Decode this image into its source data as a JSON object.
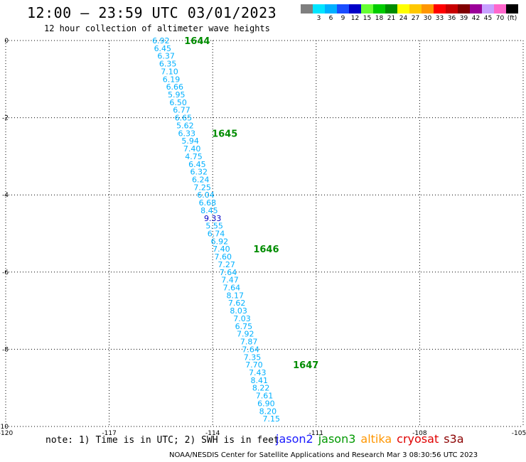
{
  "title": "12:00 – 23:59 UTC 03/01/2023",
  "subtitle": "12 hour collection of altimeter wave heights",
  "colorbar": {
    "unit_label": "(ft)",
    "entries": [
      {
        "color": "#7f7f7f",
        "label": ""
      },
      {
        "color": "#00e5ff",
        "label": "3"
      },
      {
        "color": "#00b0ff",
        "label": "6"
      },
      {
        "color": "#1a4dff",
        "label": "9"
      },
      {
        "color": "#0000c8",
        "label": "12"
      },
      {
        "color": "#66ff33",
        "label": "15"
      },
      {
        "color": "#00cc00",
        "label": "18"
      },
      {
        "color": "#008c00",
        "label": "21"
      },
      {
        "color": "#ffff00",
        "label": "24"
      },
      {
        "color": "#ffc800",
        "label": "27"
      },
      {
        "color": "#ff9600",
        "label": "30"
      },
      {
        "color": "#ff0000",
        "label": "33"
      },
      {
        "color": "#c80000",
        "label": "36"
      },
      {
        "color": "#800000",
        "label": "39"
      },
      {
        "color": "#9b0099",
        "label": "42"
      },
      {
        "color": "#c8a0ff",
        "label": "45"
      },
      {
        "color": "#ff66cc",
        "label": "70"
      },
      {
        "color": "#000000",
        "label": "(ft)"
      }
    ]
  },
  "map": {
    "lon_range": [
      -120,
      -105
    ],
    "lat_range": [
      -10,
      0
    ],
    "x_ticks": [
      "-120",
      "-117",
      "-114",
      "-111",
      "-108",
      "-105"
    ],
    "y_ticks": [
      "0",
      "-2",
      "-4",
      "-6",
      "-8",
      "-10"
    ],
    "track_color": "#00b0ff",
    "highlight_color": "#0000c8",
    "time_color": "#008c00"
  },
  "chart_data": {
    "type": "scatter",
    "title": "12:00 – 23:59 UTC 03/01/2023",
    "subtitle": "12 hour collection of altimeter wave heights",
    "xlabel": "",
    "ylabel": "",
    "xlim": [
      -120,
      -105
    ],
    "ylim": [
      -10,
      0
    ],
    "grid": true,
    "unit": "ft",
    "points": [
      {
        "lon": -115.5,
        "lat": 0.0,
        "swh": "6.92"
      },
      {
        "lon": -115.45,
        "lat": -0.2,
        "swh": "6.45"
      },
      {
        "lon": -115.35,
        "lat": -0.4,
        "swh": "6.37"
      },
      {
        "lon": -115.3,
        "lat": -0.6,
        "swh": "6.35"
      },
      {
        "lon": -115.25,
        "lat": -0.8,
        "swh": "7.10"
      },
      {
        "lon": -115.2,
        "lat": -1.0,
        "swh": "6.19"
      },
      {
        "lon": -115.1,
        "lat": -1.2,
        "swh": "6.66"
      },
      {
        "lon": -115.05,
        "lat": -1.4,
        "swh": "5.95"
      },
      {
        "lon": -115.0,
        "lat": -1.6,
        "swh": "6.50"
      },
      {
        "lon": -114.9,
        "lat": -1.8,
        "swh": "6.77"
      },
      {
        "lon": -114.85,
        "lat": -2.0,
        "swh": "6.65"
      },
      {
        "lon": -114.8,
        "lat": -2.2,
        "swh": "5.62"
      },
      {
        "lon": -114.75,
        "lat": -2.4,
        "swh": "6.33"
      },
      {
        "lon": -114.65,
        "lat": -2.6,
        "swh": "5.94"
      },
      {
        "lon": -114.6,
        "lat": -2.8,
        "swh": "7.40"
      },
      {
        "lon": -114.55,
        "lat": -3.0,
        "swh": "4.75"
      },
      {
        "lon": -114.45,
        "lat": -3.2,
        "swh": "6.45"
      },
      {
        "lon": -114.4,
        "lat": -3.4,
        "swh": "6.32"
      },
      {
        "lon": -114.35,
        "lat": -3.6,
        "swh": "6.24"
      },
      {
        "lon": -114.3,
        "lat": -3.8,
        "swh": "7.25"
      },
      {
        "lon": -114.2,
        "lat": -4.0,
        "swh": "6.04"
      },
      {
        "lon": -114.15,
        "lat": -4.2,
        "swh": "6.68"
      },
      {
        "lon": -114.1,
        "lat": -4.4,
        "swh": "8.45"
      },
      {
        "lon": -114.0,
        "lat": -4.6,
        "swh": "9.33",
        "highlight": true
      },
      {
        "lon": -113.95,
        "lat": -4.8,
        "swh": "5.55"
      },
      {
        "lon": -113.9,
        "lat": -5.0,
        "swh": "6.74"
      },
      {
        "lon": -113.8,
        "lat": -5.2,
        "swh": "6.92"
      },
      {
        "lon": -113.75,
        "lat": -5.4,
        "swh": "7.40"
      },
      {
        "lon": -113.7,
        "lat": -5.6,
        "swh": "7.60"
      },
      {
        "lon": -113.6,
        "lat": -5.8,
        "swh": "7.27"
      },
      {
        "lon": -113.55,
        "lat": -6.0,
        "swh": "7.64"
      },
      {
        "lon": -113.5,
        "lat": -6.2,
        "swh": "7.47"
      },
      {
        "lon": -113.45,
        "lat": -6.4,
        "swh": "7.64"
      },
      {
        "lon": -113.35,
        "lat": -6.6,
        "swh": "8.17"
      },
      {
        "lon": -113.3,
        "lat": -6.8,
        "swh": "7.62"
      },
      {
        "lon": -113.25,
        "lat": -7.0,
        "swh": "8.03"
      },
      {
        "lon": -113.15,
        "lat": -7.2,
        "swh": "7.03"
      },
      {
        "lon": -113.1,
        "lat": -7.4,
        "swh": "6.75"
      },
      {
        "lon": -113.05,
        "lat": -7.6,
        "swh": "7.92"
      },
      {
        "lon": -112.95,
        "lat": -7.8,
        "swh": "7.87"
      },
      {
        "lon": -112.9,
        "lat": -8.0,
        "swh": "7.64"
      },
      {
        "lon": -112.85,
        "lat": -8.2,
        "swh": "7.35"
      },
      {
        "lon": -112.8,
        "lat": -8.4,
        "swh": "7.70"
      },
      {
        "lon": -112.7,
        "lat": -8.6,
        "swh": "7.43"
      },
      {
        "lon": -112.65,
        "lat": -8.8,
        "swh": "8.41"
      },
      {
        "lon": -112.6,
        "lat": -9.0,
        "swh": "8.22"
      },
      {
        "lon": -112.5,
        "lat": -9.2,
        "swh": "7.61"
      },
      {
        "lon": -112.45,
        "lat": -9.4,
        "swh": "6.90"
      },
      {
        "lon": -112.4,
        "lat": -9.6,
        "swh": "8.20"
      },
      {
        "lon": -112.3,
        "lat": -9.8,
        "swh": "7.15"
      }
    ],
    "time_labels": [
      {
        "lon": -114.45,
        "lat": 0.0,
        "text": "1644"
      },
      {
        "lon": -113.65,
        "lat": -2.4,
        "text": "1645"
      },
      {
        "lon": -112.45,
        "lat": -5.4,
        "text": "1646"
      },
      {
        "lon": -111.3,
        "lat": -8.4,
        "text": "1647"
      }
    ]
  },
  "note": "note: 1) Time is in UTC; 2) SWH is in feet",
  "legend": [
    {
      "name": "jason2",
      "color": "#1a1aff"
    },
    {
      "name": "jason3",
      "color": "#009900"
    },
    {
      "name": "altika",
      "color": "#ff9600"
    },
    {
      "name": "cryosat",
      "color": "#e00000"
    },
    {
      "name": "s3a",
      "color": "#8b0000"
    }
  ],
  "credit": "NOAA/NESDIS Center for Satellite Applications and Research    Mar  3 08:30:56 UTC 2023"
}
